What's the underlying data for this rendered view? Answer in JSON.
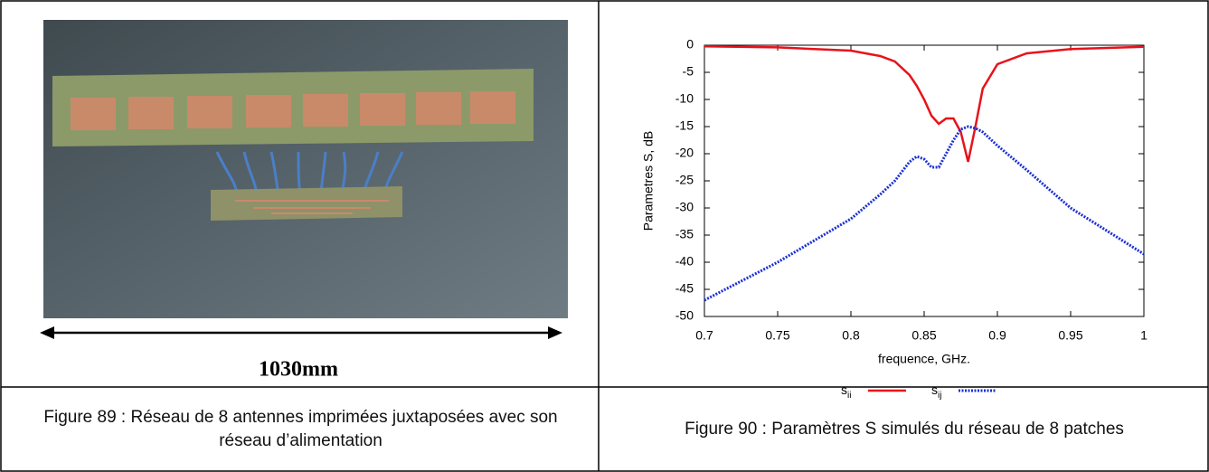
{
  "photo": {
    "dimension": "1030mm"
  },
  "chart_data": {
    "type": "line",
    "xlabel": "frequence, GHz.",
    "ylabel": "Parametres S, dB",
    "x": [
      0.7,
      0.75,
      0.8,
      0.82,
      0.83,
      0.84,
      0.845,
      0.85,
      0.855,
      0.86,
      0.865,
      0.87,
      0.875,
      0.88,
      0.885,
      0.89,
      0.9,
      0.92,
      0.95,
      1
    ],
    "series": [
      {
        "name": "sii",
        "color": "#e8121b",
        "style": "solid",
        "values": [
          -0.2,
          -0.4,
          -1,
          -2,
          -3,
          -5.5,
          -7.5,
          -10,
          -13,
          -14.5,
          -13.5,
          -13.5,
          -16,
          -21.5,
          -15,
          -8,
          -3.5,
          -1.5,
          -0.7,
          -0.3
        ]
      },
      {
        "name": "sij",
        "color": "#1a2fd6",
        "style": "dotted",
        "values": [
          -47,
          -40,
          -32,
          -27.5,
          -25,
          -21.5,
          -20.5,
          -21,
          -22.5,
          -22.5,
          -20,
          -17.5,
          -15.5,
          -15,
          -15.3,
          -16,
          -18.5,
          -23,
          -30,
          -38.5
        ]
      }
    ],
    "xlim": [
      0.7,
      1
    ],
    "xticks": [
      0.7,
      0.75,
      0.8,
      0.85,
      0.9,
      0.95,
      1
    ],
    "ylim": [
      -50,
      0
    ],
    "yticks": [
      0,
      -5,
      -10,
      -15,
      -20,
      -25,
      -30,
      -35,
      -40,
      -45,
      -50
    ],
    "grid": false,
    "legend": "bottom"
  },
  "captions": [
    "Figure 89 : Réseau de 8 antennes imprimées juxtaposées avec son réseau d’alimentation",
    "Figure 90 : Paramètres S simulés du réseau de 8 patches"
  ]
}
